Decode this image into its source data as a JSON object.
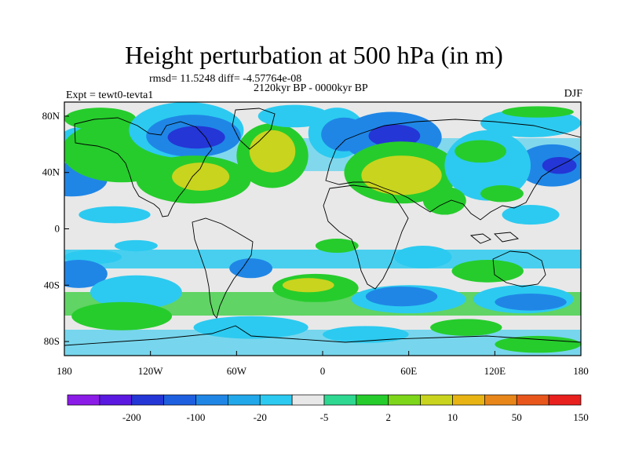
{
  "title": "Height perturbation at 500 hPa (in m)",
  "stats": "rmsd= 11.5248 diff= -4.57764e-08",
  "period": "2120kyr BP - 0000kyr BP",
  "experiment": "Expt = tewt0-tevta1",
  "season": "DJF",
  "chart_data": {
    "type": "heatmap",
    "projection": "cylindrical-equidistant",
    "lon_range": [
      -180,
      180
    ],
    "lat_range": [
      -90,
      90
    ],
    "x_ticks": [
      {
        "value": -180,
        "label": "180"
      },
      {
        "value": -120,
        "label": "120W"
      },
      {
        "value": -60,
        "label": "60W"
      },
      {
        "value": 0,
        "label": "0"
      },
      {
        "value": 60,
        "label": "60E"
      },
      {
        "value": 120,
        "label": "120E"
      },
      {
        "value": 180,
        "label": "180"
      }
    ],
    "y_ticks": [
      {
        "value": 80,
        "label": "80N"
      },
      {
        "value": 40,
        "label": "40N"
      },
      {
        "value": 0,
        "label": "0"
      },
      {
        "value": -40,
        "label": "40S"
      },
      {
        "value": -80,
        "label": "80S"
      }
    ],
    "colorbar": {
      "colors": [
        "#8b1ce8",
        "#5a18e0",
        "#2436d6",
        "#1e5fe0",
        "#1f86e6",
        "#21a8ea",
        "#2ccaf0",
        "#e8e8e8",
        "#2ed891",
        "#26cc2c",
        "#7ed61a",
        "#c9d41e",
        "#e8b414",
        "#e8861a",
        "#e8561c",
        "#e8201e"
      ],
      "labels": [
        {
          "after_bin": 1,
          "text": "-200"
        },
        {
          "after_bin": 3,
          "text": "-100"
        },
        {
          "after_bin": 5,
          "text": "-20"
        },
        {
          "after_bin": 7,
          "text": "-5"
        },
        {
          "after_bin": 9,
          "text": "2"
        },
        {
          "after_bin": 11,
          "text": "10"
        },
        {
          "after_bin": 13,
          "text": "50"
        },
        {
          "after_bin": 15,
          "text": "150"
        }
      ]
    },
    "field_regions": [
      {
        "level": -5,
        "lon": -170,
        "lat": 60,
        "rx": 15,
        "ry": 12
      },
      {
        "level": -20,
        "lon": -175,
        "lat": 35,
        "rx": 25,
        "ry": 12
      },
      {
        "level": -20,
        "lon": 160,
        "lat": 45,
        "rx": 25,
        "ry": 15
      },
      {
        "level": -100,
        "lon": 165,
        "lat": 45,
        "rx": 12,
        "ry": 6
      },
      {
        "level": -5,
        "lon": 145,
        "lat": 75,
        "rx": 35,
        "ry": 10
      },
      {
        "level": 10,
        "lon": 150,
        "lat": 83,
        "rx": 25,
        "ry": 4
      },
      {
        "level": 10,
        "lon": -155,
        "lat": 78,
        "rx": 25,
        "ry": 8
      },
      {
        "level": 50,
        "lon": -150,
        "lat": 58,
        "rx": 28,
        "ry": 14
      },
      {
        "level": 10,
        "lon": -140,
        "lat": 55,
        "rx": 42,
        "ry": 22
      },
      {
        "level": -5,
        "lon": -95,
        "lat": 70,
        "rx": 40,
        "ry": 20
      },
      {
        "level": -20,
        "lon": -90,
        "lat": 66,
        "rx": 33,
        "ry": 15
      },
      {
        "level": -100,
        "lon": -88,
        "lat": 65,
        "rx": 20,
        "ry": 8
      },
      {
        "level": 10,
        "lon": -90,
        "lat": 35,
        "rx": 40,
        "ry": 17
      },
      {
        "level": 50,
        "lon": -85,
        "lat": 37,
        "rx": 20,
        "ry": 10
      },
      {
        "level": 10,
        "lon": -35,
        "lat": 52,
        "rx": 25,
        "ry": 23
      },
      {
        "level": 50,
        "lon": -35,
        "lat": 55,
        "rx": 16,
        "ry": 15
      },
      {
        "level": -5,
        "lon": -20,
        "lat": 80,
        "rx": 25,
        "ry": 8
      },
      {
        "level": -5,
        "lon": 10,
        "lat": 68,
        "rx": 20,
        "ry": 18
      },
      {
        "level": -20,
        "lon": 15,
        "lat": 67,
        "rx": 16,
        "ry": 12
      },
      {
        "level": -20,
        "lon": 48,
        "lat": 65,
        "rx": 35,
        "ry": 18
      },
      {
        "level": -100,
        "lon": 50,
        "lat": 66,
        "rx": 18,
        "ry": 8
      },
      {
        "level": 10,
        "lon": 55,
        "lat": 40,
        "rx": 40,
        "ry": 22
      },
      {
        "level": 50,
        "lon": 55,
        "lat": 38,
        "rx": 28,
        "ry": 14
      },
      {
        "level": -5,
        "lon": 115,
        "lat": 45,
        "rx": 30,
        "ry": 25
      },
      {
        "level": 10,
        "lon": 125,
        "lat": 25,
        "rx": 15,
        "ry": 6
      },
      {
        "level": 10,
        "lon": 110,
        "lat": 55,
        "rx": 18,
        "ry": 8
      },
      {
        "level": -5,
        "lon": -145,
        "lat": 10,
        "rx": 25,
        "ry": 6
      },
      {
        "level": -5,
        "lon": -130,
        "lat": -12,
        "rx": 15,
        "ry": 4
      },
      {
        "level": -5,
        "lon": -160,
        "lat": -20,
        "rx": 20,
        "ry": 5
      },
      {
        "level": 10,
        "lon": 10,
        "lat": -12,
        "rx": 15,
        "ry": 5
      },
      {
        "level": -5,
        "lon": 70,
        "lat": -20,
        "rx": 20,
        "ry": 8
      },
      {
        "level": -5,
        "lon": 145,
        "lat": 10,
        "rx": 20,
        "ry": 7
      },
      {
        "level": 10,
        "lon": 85,
        "lat": 20,
        "rx": 15,
        "ry": 10
      },
      {
        "level": 10,
        "lon": 115,
        "lat": -30,
        "rx": 25,
        "ry": 8
      },
      {
        "level": -20,
        "lon": -170,
        "lat": -32,
        "rx": 20,
        "ry": 10
      },
      {
        "level": -20,
        "lon": -50,
        "lat": -28,
        "rx": 15,
        "ry": 7
      },
      {
        "level": -5,
        "lon": -130,
        "lat": -45,
        "rx": 32,
        "ry": 12
      },
      {
        "level": 10,
        "lon": -140,
        "lat": -62,
        "rx": 35,
        "ry": 10
      },
      {
        "level": 10,
        "lon": -5,
        "lat": -42,
        "rx": 30,
        "ry": 10
      },
      {
        "level": 50,
        "lon": -10,
        "lat": -40,
        "rx": 18,
        "ry": 5
      },
      {
        "level": -5,
        "lon": 60,
        "lat": -50,
        "rx": 40,
        "ry": 10
      },
      {
        "level": -20,
        "lon": 55,
        "lat": -48,
        "rx": 25,
        "ry": 7
      },
      {
        "level": -5,
        "lon": 140,
        "lat": -50,
        "rx": 35,
        "ry": 10
      },
      {
        "level": -20,
        "lon": 145,
        "lat": -52,
        "rx": 25,
        "ry": 6
      },
      {
        "level": -5,
        "lon": -50,
        "lat": -70,
        "rx": 40,
        "ry": 8
      },
      {
        "level": -5,
        "lon": 30,
        "lat": -75,
        "rx": 30,
        "ry": 6
      },
      {
        "level": 10,
        "lon": 150,
        "lat": -82,
        "rx": 30,
        "ry": 6
      },
      {
        "level": 10,
        "lon": 100,
        "lat": -70,
        "rx": 25,
        "ry": 6
      }
    ]
  }
}
